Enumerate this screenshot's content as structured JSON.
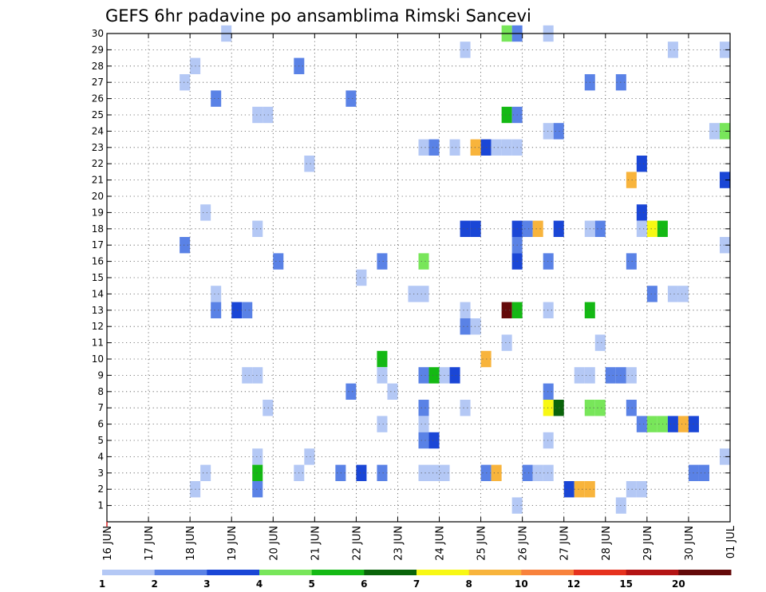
{
  "chart_data": {
    "type": "heatmap",
    "title": "GEFS 6hr padavine po ansamblima Rimski Sancevi",
    "xlabel": "",
    "ylabel": "",
    "x_tick_labels": [
      "16 JUN",
      "17 JUN",
      "18 JUN",
      "19 JUN",
      "20 JUN",
      "21 JUN",
      "22 JUN",
      "23 JUN",
      "24 JUN",
      "25 JUN",
      "26 JUN",
      "27 JUN",
      "28 JUN",
      "29 JUN",
      "30 JUN",
      "01 JUL"
    ],
    "x_range_days": [
      0,
      15
    ],
    "y_range": [
      0,
      30
    ],
    "y_tick_labels": [
      1,
      2,
      3,
      4,
      5,
      6,
      7,
      8,
      9,
      10,
      11,
      12,
      13,
      14,
      15,
      16,
      17,
      18,
      19,
      20,
      21,
      22,
      23,
      24,
      25,
      26,
      27,
      28,
      29,
      30
    ],
    "grid": true,
    "time_step_days": 0.25,
    "colorbar": {
      "ticks": [
        "1",
        "2",
        "3",
        "4",
        "5",
        "6",
        "7",
        "8",
        "10",
        "12",
        "15",
        "20"
      ],
      "colors": [
        "#b4c8f5",
        "#5a82e6",
        "#1a46d6",
        "#78e65a",
        "#14b914",
        "#0a640a",
        "#f8f814",
        "#f8b43c",
        "#f8823c",
        "#e6321e",
        "#b41414",
        "#640a0a"
      ]
    },
    "cells": [
      [
        3.0,
        30,
        0
      ],
      [
        9.75,
        30,
        3
      ],
      [
        10.0,
        30,
        1
      ],
      [
        10.75,
        30,
        0
      ],
      [
        8.75,
        29,
        0
      ],
      [
        13.75,
        29,
        0
      ],
      [
        15.0,
        29,
        0
      ],
      [
        2.25,
        28,
        0
      ],
      [
        4.75,
        28,
        1
      ],
      [
        2.0,
        27,
        0
      ],
      [
        11.75,
        27,
        1
      ],
      [
        12.5,
        27,
        1
      ],
      [
        2.75,
        26,
        1
      ],
      [
        6.0,
        26,
        1
      ],
      [
        3.75,
        25,
        0
      ],
      [
        4.0,
        25,
        0
      ],
      [
        9.75,
        25,
        4
      ],
      [
        10.0,
        25,
        1
      ],
      [
        10.75,
        24,
        0
      ],
      [
        11.0,
        24,
        1
      ],
      [
        14.75,
        24,
        0
      ],
      [
        15.0,
        24,
        3
      ],
      [
        7.75,
        23,
        0
      ],
      [
        8.0,
        23,
        1
      ],
      [
        8.5,
        23,
        0
      ],
      [
        9.0,
        23,
        7
      ],
      [
        9.25,
        23,
        2
      ],
      [
        9.5,
        23,
        0
      ],
      [
        9.75,
        23,
        0
      ],
      [
        10.0,
        23,
        0
      ],
      [
        5.0,
        22,
        0
      ],
      [
        13.0,
        22,
        2
      ],
      [
        12.75,
        21,
        7
      ],
      [
        15.0,
        21,
        2
      ],
      [
        2.5,
        19,
        0
      ],
      [
        13.0,
        19,
        2
      ],
      [
        3.75,
        18,
        0
      ],
      [
        8.75,
        18,
        2
      ],
      [
        9.0,
        18,
        2
      ],
      [
        10.0,
        18,
        2
      ],
      [
        10.25,
        18,
        1
      ],
      [
        10.5,
        18,
        7
      ],
      [
        11.0,
        18,
        2
      ],
      [
        11.75,
        18,
        0
      ],
      [
        12.0,
        18,
        1
      ],
      [
        13.0,
        18,
        0
      ],
      [
        13.25,
        18,
        6
      ],
      [
        13.5,
        18,
        4
      ],
      [
        2.0,
        17,
        1
      ],
      [
        15.0,
        17,
        0
      ],
      [
        10.0,
        17,
        1
      ],
      [
        4.25,
        16,
        1
      ],
      [
        6.75,
        16,
        1
      ],
      [
        7.75,
        16,
        3
      ],
      [
        10.0,
        16,
        2
      ],
      [
        10.75,
        16,
        1
      ],
      [
        12.75,
        16,
        1
      ],
      [
        6.25,
        15,
        0
      ],
      [
        2.75,
        14,
        0
      ],
      [
        7.5,
        14,
        0
      ],
      [
        7.75,
        14,
        0
      ],
      [
        13.25,
        14,
        1
      ],
      [
        13.75,
        14,
        0
      ],
      [
        14.0,
        14,
        0
      ],
      [
        2.75,
        13,
        1
      ],
      [
        3.25,
        13,
        2
      ],
      [
        3.5,
        13,
        1
      ],
      [
        8.75,
        13,
        0
      ],
      [
        9.75,
        13,
        11
      ],
      [
        10.0,
        13,
        4
      ],
      [
        10.75,
        13,
        0
      ],
      [
        11.75,
        13,
        4
      ],
      [
        8.75,
        12,
        1
      ],
      [
        9.0,
        12,
        0
      ],
      [
        9.75,
        11,
        0
      ],
      [
        12.0,
        11,
        0
      ],
      [
        6.75,
        10,
        4
      ],
      [
        9.25,
        10,
        7
      ],
      [
        3.5,
        9,
        0
      ],
      [
        3.75,
        9,
        0
      ],
      [
        6.75,
        9,
        0
      ],
      [
        7.75,
        9,
        1
      ],
      [
        8.0,
        9,
        4
      ],
      [
        8.25,
        9,
        0
      ],
      [
        8.5,
        9,
        2
      ],
      [
        11.5,
        9,
        0
      ],
      [
        11.75,
        9,
        0
      ],
      [
        12.25,
        9,
        1
      ],
      [
        12.5,
        9,
        1
      ],
      [
        12.75,
        9,
        0
      ],
      [
        6.0,
        8,
        1
      ],
      [
        7.0,
        8,
        0
      ],
      [
        10.75,
        8,
        1
      ],
      [
        4.0,
        7,
        0
      ],
      [
        7.75,
        7,
        1
      ],
      [
        8.75,
        7,
        0
      ],
      [
        10.75,
        7,
        6
      ],
      [
        11.0,
        7,
        5
      ],
      [
        11.75,
        7,
        3
      ],
      [
        12.0,
        7,
        3
      ],
      [
        12.75,
        7,
        1
      ],
      [
        6.75,
        6,
        0
      ],
      [
        7.75,
        6,
        0
      ],
      [
        13.0,
        6,
        1
      ],
      [
        13.25,
        6,
        3
      ],
      [
        13.5,
        6,
        3
      ],
      [
        13.75,
        6,
        2
      ],
      [
        14.0,
        6,
        7
      ],
      [
        14.25,
        6,
        2
      ],
      [
        7.75,
        5,
        1
      ],
      [
        8.0,
        5,
        2
      ],
      [
        10.75,
        5,
        0
      ],
      [
        3.75,
        4,
        0
      ],
      [
        5.0,
        4,
        0
      ],
      [
        15.0,
        4,
        0
      ],
      [
        2.5,
        3,
        0
      ],
      [
        3.75,
        3,
        4
      ],
      [
        4.75,
        3,
        0
      ],
      [
        5.75,
        3,
        1
      ],
      [
        6.25,
        3,
        2
      ],
      [
        6.75,
        3,
        1
      ],
      [
        7.75,
        3,
        0
      ],
      [
        8.0,
        3,
        0
      ],
      [
        8.25,
        3,
        0
      ],
      [
        9.25,
        3,
        1
      ],
      [
        9.5,
        3,
        7
      ],
      [
        10.25,
        3,
        1
      ],
      [
        10.5,
        3,
        0
      ],
      [
        10.75,
        3,
        0
      ],
      [
        14.25,
        3,
        1
      ],
      [
        14.5,
        3,
        1
      ],
      [
        2.25,
        2,
        0
      ],
      [
        3.75,
        2,
        1
      ],
      [
        11.25,
        2,
        2
      ],
      [
        11.5,
        2,
        7
      ],
      [
        11.75,
        2,
        7
      ],
      [
        12.75,
        2,
        0
      ],
      [
        13.0,
        2,
        0
      ],
      [
        10.0,
        1,
        0
      ],
      [
        12.5,
        1,
        0
      ]
    ]
  }
}
